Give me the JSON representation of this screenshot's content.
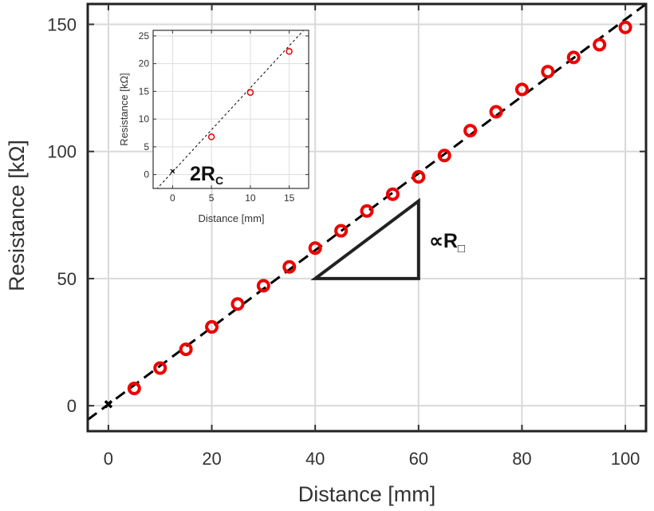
{
  "chart_data": [
    {
      "type": "scatter",
      "title": "",
      "xlabel": "Distance [mm]",
      "ylabel": "Resistance [kΩ]",
      "xlim": [
        -4,
        104
      ],
      "ylim": [
        -10,
        158
      ],
      "xticks": [
        "0",
        "20",
        "40",
        "60",
        "80",
        "100"
      ],
      "yticks": [
        "0",
        "50",
        "100",
        "150"
      ],
      "grid": true,
      "series": [
        {
          "kind": "markers",
          "marker": "open-circle",
          "color": "#ee0000",
          "x": [
            5,
            10,
            15,
            20,
            25,
            30,
            35,
            40,
            45,
            50,
            55,
            60,
            65,
            70,
            75,
            80,
            85,
            90,
            95,
            100
          ],
          "y": [
            6.8,
            14.8,
            22.2,
            31,
            40,
            47.2,
            54.6,
            62,
            68.8,
            76.6,
            83.2,
            90,
            98.4,
            108.2,
            115.6,
            124.4,
            131.4,
            137,
            142,
            148.8
          ]
        },
        {
          "kind": "markers",
          "marker": "x",
          "color": "#000000",
          "x": [
            0
          ],
          "y": [
            0.6
          ]
        },
        {
          "kind": "fit-line",
          "style": "dashed",
          "color": "#000000",
          "x": [
            -4,
            104
          ],
          "y": [
            -5.5,
            158
          ]
        }
      ],
      "annotations": {
        "slope_label": "∝R",
        "slope_subscript": "□",
        "slope_triangle": {
          "x": [
            40,
            60
          ],
          "y": [
            50,
            80.5
          ]
        }
      }
    },
    {
      "type": "scatter",
      "title": "",
      "xlabel": "Distance [mm]",
      "ylabel": "Resistance [kΩ]",
      "xlim": [
        -2.5,
        17.5
      ],
      "ylim": [
        -2.5,
        26
      ],
      "xticks": [
        "0",
        "5",
        "10",
        "15"
      ],
      "yticks": [
        "0",
        "5",
        "10",
        "15",
        "20",
        "25"
      ],
      "grid": true,
      "series": [
        {
          "kind": "markers",
          "marker": "open-circle",
          "color": "#ee0000",
          "x": [
            5,
            10,
            15
          ],
          "y": [
            6.8,
            14.8,
            22.2
          ]
        },
        {
          "kind": "markers",
          "marker": "x",
          "color": "#000000",
          "x": [
            0
          ],
          "y": [
            0.6
          ]
        },
        {
          "kind": "fit-line",
          "style": "dashed",
          "color": "#000000",
          "x": [
            -2.5,
            17.5
          ],
          "y": [
            -3.3,
            27
          ]
        }
      ],
      "annotations": {
        "intercept_label": "2R",
        "intercept_subscript": "C"
      }
    }
  ]
}
